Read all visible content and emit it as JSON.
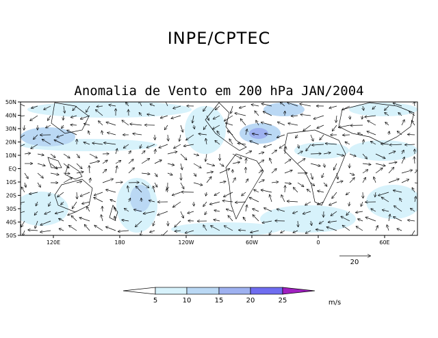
{
  "header": "INPE/CPTEC",
  "title": "Anomalia de Vento em 200 hPa JAN/2004",
  "map": {
    "lon_range": [
      80,
      100
    ],
    "lat_range": [
      -50,
      50
    ],
    "lat_ticks": [
      "50N",
      "40N",
      "30N",
      "20N",
      "10N",
      "EQ",
      "10S",
      "20S",
      "30S",
      "40S",
      "50S"
    ],
    "lon_ticks": [
      "120E",
      "180",
      "120W",
      "60W",
      "0",
      "60E"
    ],
    "shading_colors": [
      "#ffffff",
      "#d7f2fb",
      "#bad8f4",
      "#9eb1f0",
      "#6f6df0",
      "#a020c0"
    ]
  },
  "reference_vector": {
    "value": "20"
  },
  "colorbar": {
    "labels": [
      "5",
      "10",
      "15",
      "20",
      "25"
    ],
    "unit": "m/s"
  }
}
